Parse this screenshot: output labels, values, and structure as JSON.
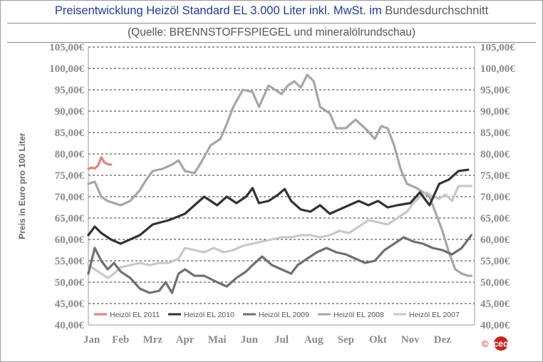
{
  "title_part1": "Preisentwicklung Heizöl Standard EL 3.000 Liter inkl. MwSt. im",
  "title_part2": "Bundesdurchschnitt",
  "subtitle": "(Quelle: BRENNSTOFFSPIEGEL und mineralölrundschau)",
  "logo_prefix": "©",
  "logo_text": "ceo",
  "chart_data": {
    "type": "line",
    "ylabel": "Preis in Euro pro 100 Liter",
    "xlabel": "",
    "ylim": [
      40,
      105
    ],
    "yticks": [
      "40,00€",
      "45,00€",
      "50,00€",
      "55,00€",
      "60,00€",
      "65,00€",
      "70,00€",
      "75,00€",
      "80,00€",
      "85,00€",
      "90,00€",
      "95,00€",
      "100,00€",
      "105,00€"
    ],
    "ytick_values": [
      40,
      45,
      50,
      55,
      60,
      65,
      70,
      75,
      80,
      85,
      90,
      95,
      100,
      105
    ],
    "grid": "horizontal dashed",
    "legend_position": "bottom inside",
    "categories": [
      "Jan",
      "Feb",
      "Mrz",
      "Apr",
      "Mai",
      "Jun",
      "Jul",
      "Aug",
      "Sep",
      "Okt",
      "Nov",
      "Dez"
    ],
    "x_unit": "month index (0 = Jan, 12 = end of Dec)",
    "xlim": [
      0,
      12
    ],
    "series": [
      {
        "name": "Heizöl EL 2011",
        "color": "#e0827a",
        "points": [
          [
            0,
            76.5
          ],
          [
            0.1,
            76.8
          ],
          [
            0.2,
            76.6
          ],
          [
            0.3,
            77.3
          ],
          [
            0.4,
            79.2
          ],
          [
            0.5,
            78
          ],
          [
            0.6,
            77.6
          ],
          [
            0.7,
            77.5
          ]
        ]
      },
      {
        "name": "Heizöl EL 2010",
        "color": "#333333",
        "points": [
          [
            0,
            61
          ],
          [
            0.2,
            63
          ],
          [
            0.4,
            61.5
          ],
          [
            0.7,
            60
          ],
          [
            1,
            59
          ],
          [
            1.3,
            60
          ],
          [
            1.6,
            61
          ],
          [
            2,
            63.5
          ],
          [
            2.5,
            64.5
          ],
          [
            3,
            66
          ],
          [
            3.3,
            68
          ],
          [
            3.6,
            70
          ],
          [
            4,
            68
          ],
          [
            4.3,
            70
          ],
          [
            4.6,
            68.5
          ],
          [
            4.9,
            70
          ],
          [
            5.1,
            72
          ],
          [
            5.3,
            68.5
          ],
          [
            5.6,
            69
          ],
          [
            5.9,
            70.5
          ],
          [
            6.1,
            71.8
          ],
          [
            6.3,
            69
          ],
          [
            6.6,
            67
          ],
          [
            6.9,
            66.5
          ],
          [
            7.2,
            68
          ],
          [
            7.5,
            66
          ],
          [
            7.8,
            67
          ],
          [
            8.1,
            68
          ],
          [
            8.4,
            69
          ],
          [
            8.7,
            68
          ],
          [
            9,
            69
          ],
          [
            9.3,
            67.5
          ],
          [
            9.6,
            68
          ],
          [
            10,
            68.5
          ],
          [
            10.3,
            71
          ],
          [
            10.6,
            68
          ],
          [
            10.9,
            73
          ],
          [
            11.2,
            74
          ],
          [
            11.5,
            76
          ],
          [
            11.8,
            76.3
          ]
        ]
      },
      {
        "name": "Heizöl EL 2009",
        "color": "#707070",
        "points": [
          [
            0,
            52
          ],
          [
            0.2,
            58
          ],
          [
            0.4,
            55
          ],
          [
            0.6,
            53
          ],
          [
            0.8,
            54.5
          ],
          [
            1,
            52.5
          ],
          [
            1.3,
            51
          ],
          [
            1.6,
            48.5
          ],
          [
            1.9,
            47.5
          ],
          [
            2.2,
            48
          ],
          [
            2.4,
            50
          ],
          [
            2.6,
            47.5
          ],
          [
            2.8,
            52
          ],
          [
            3,
            53
          ],
          [
            3.3,
            51.5
          ],
          [
            3.6,
            51.5
          ],
          [
            4,
            50
          ],
          [
            4.3,
            49
          ],
          [
            4.6,
            51
          ],
          [
            4.9,
            52.5
          ],
          [
            5.1,
            54
          ],
          [
            5.4,
            56
          ],
          [
            5.7,
            54
          ],
          [
            6,
            53
          ],
          [
            6.3,
            52
          ],
          [
            6.5,
            54
          ],
          [
            6.8,
            55.5
          ],
          [
            7.1,
            57
          ],
          [
            7.4,
            58
          ],
          [
            7.7,
            57
          ],
          [
            8,
            56.5
          ],
          [
            8.3,
            55.5
          ],
          [
            8.6,
            54.5
          ],
          [
            8.9,
            55
          ],
          [
            9.2,
            57.5
          ],
          [
            9.5,
            59
          ],
          [
            9.8,
            60.5
          ],
          [
            10.1,
            59.5
          ],
          [
            10.4,
            59
          ],
          [
            10.7,
            58
          ],
          [
            11,
            57.5
          ],
          [
            11.3,
            56.5
          ],
          [
            11.6,
            58
          ],
          [
            11.8,
            60
          ],
          [
            11.9,
            61
          ]
        ]
      },
      {
        "name": "Heizöl EL 2008",
        "color": "#a6a6a6",
        "points": [
          [
            0,
            73
          ],
          [
            0.2,
            73.5
          ],
          [
            0.4,
            70
          ],
          [
            0.6,
            69
          ],
          [
            0.8,
            68.5
          ],
          [
            1,
            68
          ],
          [
            1.3,
            69
          ],
          [
            1.6,
            71.5
          ],
          [
            1.8,
            74
          ],
          [
            2,
            76
          ],
          [
            2.3,
            76.5
          ],
          [
            2.6,
            77.5
          ],
          [
            2.8,
            78.5
          ],
          [
            3,
            76
          ],
          [
            3.3,
            75.5
          ],
          [
            3.5,
            78
          ],
          [
            3.8,
            82
          ],
          [
            4.1,
            83.5
          ],
          [
            4.3,
            87
          ],
          [
            4.5,
            91
          ],
          [
            4.8,
            95
          ],
          [
            5.1,
            94.5
          ],
          [
            5.3,
            91
          ],
          [
            5.6,
            96
          ],
          [
            5.8,
            95
          ],
          [
            6,
            94
          ],
          [
            6.2,
            96
          ],
          [
            6.4,
            97
          ],
          [
            6.6,
            95.5
          ],
          [
            6.8,
            98.5
          ],
          [
            7,
            97
          ],
          [
            7.2,
            91
          ],
          [
            7.5,
            89.5
          ],
          [
            7.7,
            86
          ],
          [
            8,
            86
          ],
          [
            8.3,
            88
          ],
          [
            8.6,
            86
          ],
          [
            8.9,
            83.5
          ],
          [
            9.1,
            86.5
          ],
          [
            9.3,
            86
          ],
          [
            9.5,
            82
          ],
          [
            9.7,
            76.5
          ],
          [
            9.9,
            73
          ],
          [
            10.2,
            72
          ],
          [
            10.4,
            71
          ],
          [
            10.6,
            70
          ],
          [
            10.8,
            66
          ],
          [
            11,
            62
          ],
          [
            11.2,
            57
          ],
          [
            11.4,
            53
          ],
          [
            11.6,
            52
          ],
          [
            11.8,
            51.5
          ],
          [
            11.9,
            51.5
          ]
        ]
      },
      {
        "name": "Heizöl EL 2007",
        "color": "#c8c8c8",
        "points": [
          [
            0,
            54
          ],
          [
            0.2,
            53
          ],
          [
            0.4,
            52
          ],
          [
            0.6,
            51
          ],
          [
            0.8,
            52
          ],
          [
            1,
            53.5
          ],
          [
            1.3,
            54
          ],
          [
            1.6,
            54.5
          ],
          [
            1.9,
            54
          ],
          [
            2.2,
            54.5
          ],
          [
            2.5,
            54.5
          ],
          [
            2.8,
            55.5
          ],
          [
            3,
            58
          ],
          [
            3.3,
            57.5
          ],
          [
            3.6,
            57
          ],
          [
            3.9,
            58
          ],
          [
            4.2,
            57
          ],
          [
            4.5,
            57.5
          ],
          [
            4.8,
            58.5
          ],
          [
            5.1,
            59
          ],
          [
            5.4,
            59.5
          ],
          [
            5.7,
            60
          ],
          [
            6,
            60.5
          ],
          [
            6.3,
            60.5
          ],
          [
            6.6,
            61
          ],
          [
            6.9,
            61
          ],
          [
            7.2,
            60.5
          ],
          [
            7.5,
            61
          ],
          [
            7.8,
            62
          ],
          [
            8.1,
            61.5
          ],
          [
            8.4,
            63
          ],
          [
            8.7,
            64.5
          ],
          [
            9,
            64
          ],
          [
            9.3,
            63.5
          ],
          [
            9.6,
            65
          ],
          [
            9.9,
            66.5
          ],
          [
            10.1,
            68.5
          ],
          [
            10.3,
            70
          ],
          [
            10.5,
            71
          ],
          [
            10.7,
            70
          ],
          [
            10.9,
            69.5
          ],
          [
            11.1,
            70.5
          ],
          [
            11.3,
            69
          ],
          [
            11.5,
            72.5
          ],
          [
            11.7,
            72.5
          ],
          [
            11.9,
            72.5
          ]
        ]
      }
    ]
  }
}
